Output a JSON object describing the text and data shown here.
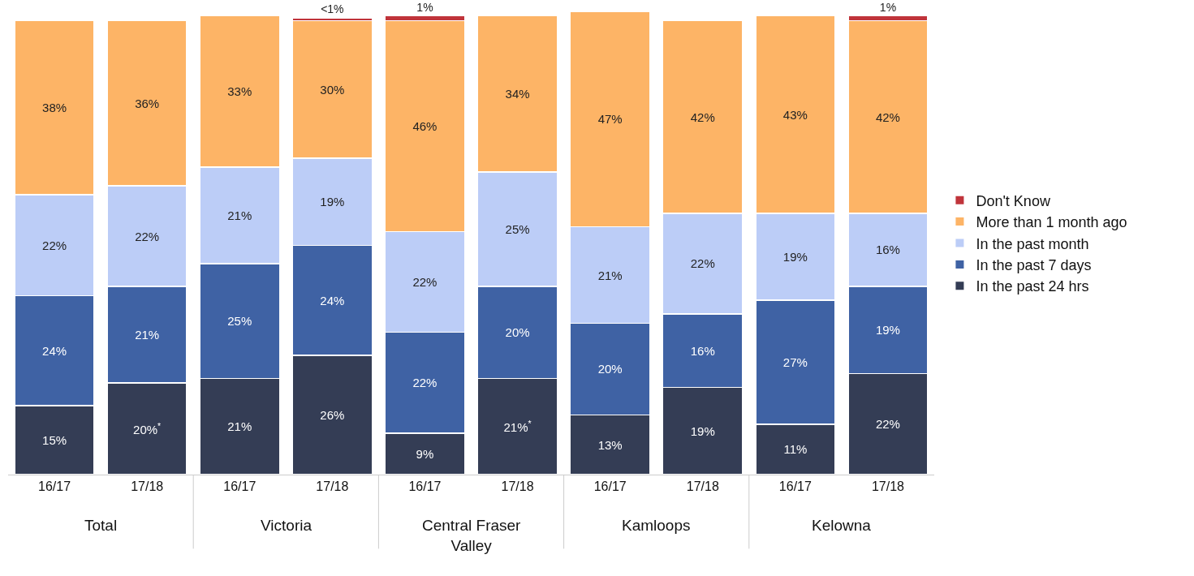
{
  "chart_data": {
    "type": "bar",
    "stacked": true,
    "data_labels": true,
    "legend": "right",
    "tick_labels": "x",
    "categories": [
      "16/17",
      "17/18",
      "16/17",
      "17/18",
      "16/17",
      "17/18",
      "16/17",
      "17/18",
      "16/17",
      "17/18"
    ],
    "annotations": [
      "Total",
      "Victoria",
      "Central Fraser Valley",
      "Kamloops",
      "Kelowna"
    ],
    "series": [
      {
        "name": "In the past 24 hrs",
        "color": "#343d55",
        "values": [
          15,
          20,
          21,
          26,
          9,
          21,
          13,
          19,
          11,
          22
        ],
        "value_labels": [
          "15%",
          "20%$^{*}$",
          "21%",
          "26%",
          "9%",
          "21%$^{*}$",
          "13%",
          "19%",
          "11%",
          "22%"
        ]
      },
      {
        "name": "In the past 7 days",
        "color": "#3f62a4",
        "values": [
          24,
          21,
          25,
          24,
          22,
          20,
          20,
          16,
          27,
          19
        ],
        "value_labels": [
          "24%",
          "21%",
          "25%",
          "24%",
          "22%",
          "20%",
          "20%",
          "16%",
          "27%",
          "19%"
        ]
      },
      {
        "name": "In the past month",
        "color": "#bccdf7",
        "values": [
          22,
          22,
          21,
          19,
          22,
          25,
          21,
          22,
          19,
          16
        ],
        "value_labels": [
          "22%",
          "22%",
          "21%",
          "19%",
          "22%",
          "25%",
          "21%",
          "22%",
          "19%",
          "16%"
        ]
      },
      {
        "name": "More than 1 month ago",
        "color": "#fdb466",
        "values": [
          38,
          36,
          33,
          30,
          46,
          34,
          47,
          42,
          43,
          42
        ],
        "value_labels": [
          "38%",
          "36%",
          "33%",
          "30%",
          "46%",
          "34%",
          "47%",
          "42%",
          "43%",
          "42%"
        ]
      },
      {
        "name": "Don't Know",
        "color": "#c0343b",
        "values": [
          null,
          null,
          null,
          0.5,
          1,
          null,
          null,
          null,
          null,
          1
        ],
        "value_labels": [
          null,
          null,
          null,
          "<1%",
          "1%",
          null,
          null,
          null,
          null,
          "1%"
        ]
      }
    ]
  }
}
